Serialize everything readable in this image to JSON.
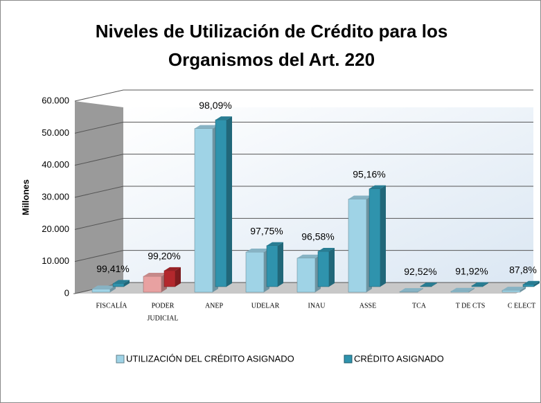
{
  "chart_data": {
    "type": "bar3d",
    "title": [
      "Niveles de Utilización de Crédito para los",
      "Organismos del Art. 220"
    ],
    "ylabel": "Millones",
    "categories": [
      [
        "FISCALÍA"
      ],
      [
        "PODER",
        "JUDICIAL"
      ],
      [
        "ANEP"
      ],
      [
        "UDELAR"
      ],
      [
        "INAU"
      ],
      [
        "ASSE"
      ],
      [
        "TCA"
      ],
      [
        "T DE CTS"
      ],
      [
        "C ELECT"
      ]
    ],
    "series": [
      {
        "name": "UTILIZACIÓN DEL CRÉDITO ASIGNADO",
        "color": "#9fd3e6",
        "values": [
          994,
          4960,
          51007,
          12512,
          10624,
          29024,
          185,
          276,
          615
        ]
      },
      {
        "name": "CRÉDITO ASIGNADO",
        "color": "#2f93ad",
        "values": [
          1000,
          5000,
          52000,
          12800,
          11000,
          30500,
          200,
          300,
          700
        ]
      }
    ],
    "point_labels": [
      "99,41%",
      "99,20%",
      "98,09%",
      "97,75%",
      "96,58%",
      "95,16%",
      "92,52%",
      "91,92%",
      "87,8%"
    ],
    "highlight": {
      "category": 1,
      "colors": [
        "#e8a1a1",
        "#b3282d"
      ]
    },
    "ylim": [
      0,
      60000
    ],
    "yticks": [
      0,
      {
        "value": 10000,
        "label": "10.000"
      },
      {
        "value": 20000,
        "label": "20.000"
      },
      {
        "value": 30000,
        "label": "30.000"
      },
      {
        "value": 40000,
        "label": "40.000"
      },
      {
        "value": 50000,
        "label": "50.000"
      },
      {
        "value": 60000,
        "label": "60.000"
      }
    ],
    "grid": true,
    "legend": "bottom"
  }
}
